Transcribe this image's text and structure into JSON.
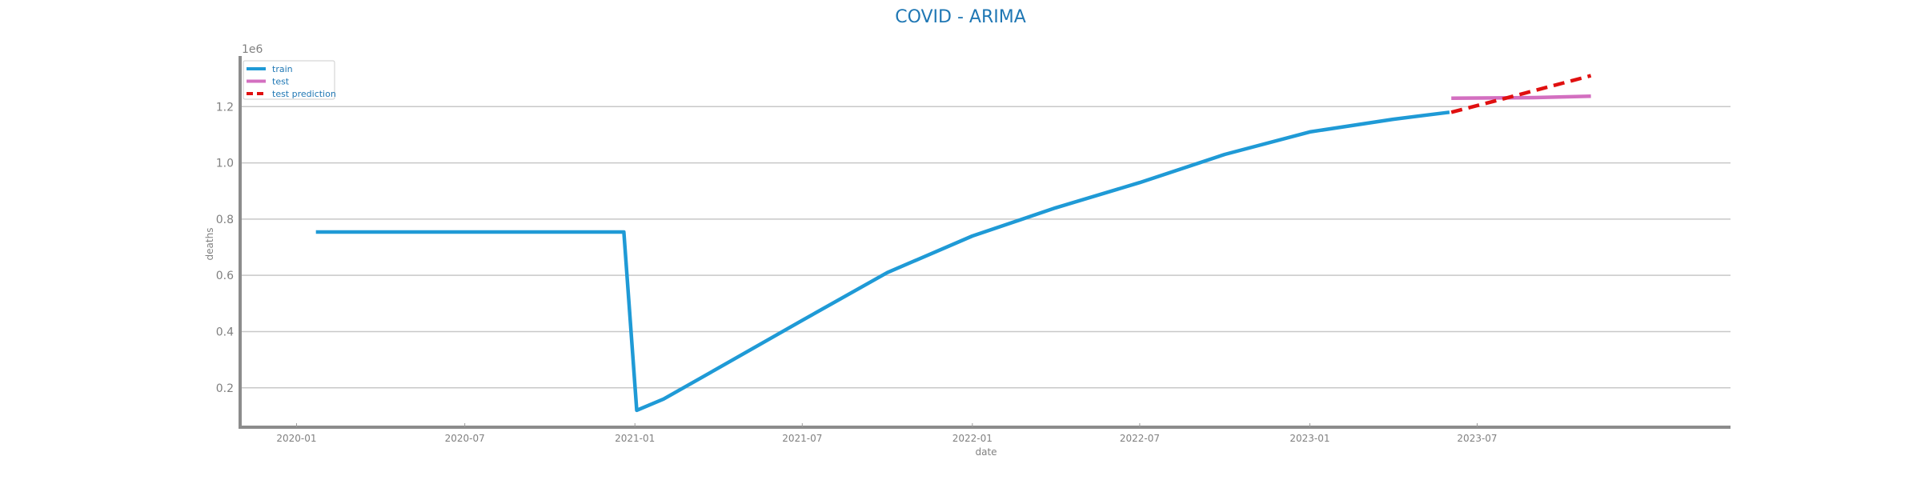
{
  "chart_data": {
    "type": "line",
    "title": "COVID - ARIMA",
    "xlabel": "date",
    "ylabel": "deaths",
    "y_offset_label": "1e6",
    "ylim": [
      0.06,
      1.38
    ],
    "xlim": [
      "2019-11-01",
      "2024-03-31"
    ],
    "grid": "horizontal",
    "legend_position": "top-left",
    "x_ticks": [
      "2020-01",
      "2020-07",
      "2021-01",
      "2021-07",
      "2022-01",
      "2022-07",
      "2023-01",
      "2023-07"
    ],
    "y_ticks": [
      0.2,
      0.4,
      0.6,
      0.8,
      1.0,
      1.2
    ],
    "y_tick_labels": [
      "0.2",
      "0.4",
      "0.6",
      "0.8",
      "1.0",
      "1.2"
    ],
    "series": [
      {
        "name": "train",
        "color": "#1f9ad6",
        "style": "solid",
        "x": [
          "2020-01-22",
          "2020-12-20",
          "2021-01-03",
          "2021-02-01",
          "2021-04-01",
          "2021-07-01",
          "2021-10-01",
          "2022-01-01",
          "2022-04-01",
          "2022-07-01",
          "2022-10-01",
          "2023-01-01",
          "2023-04-01",
          "2023-06-01"
        ],
        "y": [
          0.754,
          0.754,
          0.12,
          0.16,
          0.27,
          0.44,
          0.61,
          0.74,
          0.84,
          0.93,
          1.03,
          1.11,
          1.155,
          1.18
        ]
      },
      {
        "name": "test",
        "color": "#d36fc0",
        "style": "solid",
        "x": [
          "2023-06-03",
          "2023-09-01",
          "2023-11-01"
        ],
        "y": [
          1.23,
          1.232,
          1.237
        ]
      },
      {
        "name": "test prediction",
        "color": "#e01010",
        "style": "dashed",
        "x": [
          "2023-06-03",
          "2023-08-01",
          "2023-11-01"
        ],
        "y": [
          1.18,
          1.23,
          1.31
        ]
      }
    ]
  }
}
